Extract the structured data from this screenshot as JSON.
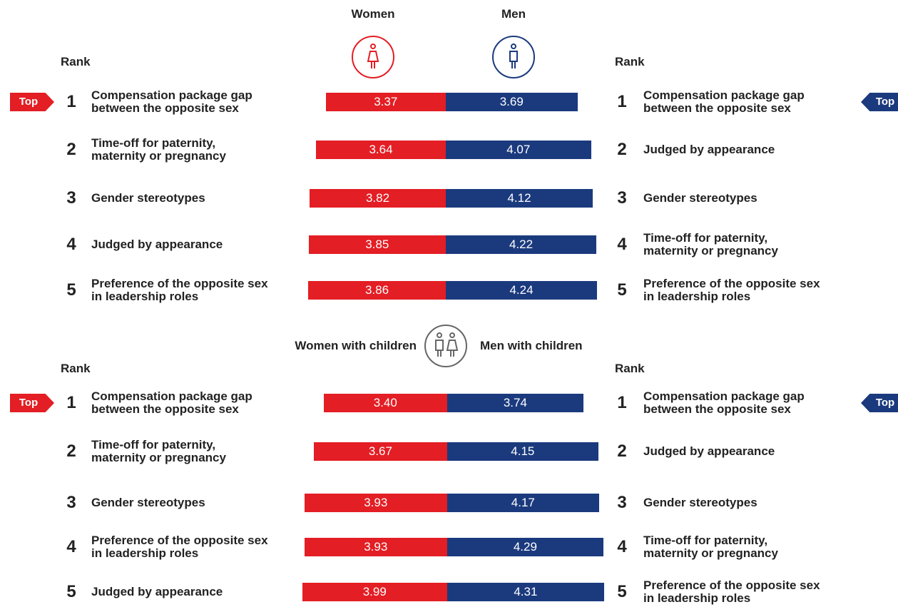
{
  "chart_data": [
    {
      "type": "butterfly",
      "rank_label": "Rank",
      "top_label": "Top",
      "series": [
        {
          "name": "Women",
          "color": "#e31e24",
          "ranks": [
            1,
            2,
            3,
            4,
            5
          ],
          "categories": [
            "Compensation package gap between the opposite sex",
            "Time-off for paternity, maternity or pregnancy",
            "Gender stereotypes",
            "Judged by appearance",
            "Preference of the opposite sex in leadership roles"
          ],
          "values": [
            3.37,
            3.64,
            3.82,
            3.85,
            3.86
          ],
          "value_labels": [
            "3.37",
            "3.64",
            "3.82",
            "3.85",
            "3.86"
          ]
        },
        {
          "name": "Men",
          "color": "#1b3a7e",
          "ranks": [
            1,
            2,
            3,
            4,
            5
          ],
          "categories": [
            "Compensation package gap between the opposite sex",
            "Judged by appearance",
            "Gender stereotypes",
            "Time-off for paternity, maternity or pregnancy",
            "Preference of the opposite sex in leadership roles"
          ],
          "values": [
            3.69,
            4.07,
            4.12,
            4.22,
            4.24
          ],
          "value_labels": [
            "3.69",
            "4.07",
            "4.12",
            "4.22",
            "4.24"
          ]
        }
      ]
    },
    {
      "type": "butterfly",
      "rank_label": "Rank",
      "top_label": "Top",
      "series": [
        {
          "name": "Women with children",
          "color": "#e31e24",
          "ranks": [
            1,
            2,
            3,
            4,
            5
          ],
          "categories": [
            "Compensation package gap between the opposite sex",
            "Time-off for paternity, maternity or pregnancy",
            "Gender stereotypes",
            "Preference of the opposite sex in leadership roles",
            "Judged by appearance"
          ],
          "values": [
            3.4,
            3.67,
            3.93,
            3.93,
            3.99
          ],
          "value_labels": [
            "3.40",
            "3.67",
            "3.93",
            "3.93",
            "3.99"
          ]
        },
        {
          "name": "Men with children",
          "color": "#1b3a7e",
          "ranks": [
            1,
            2,
            3,
            4,
            5
          ],
          "categories": [
            "Compensation package gap between the opposite sex",
            "Judged by appearance",
            "Gender stereotypes",
            "Time-off for paternity, maternity or pregnancy",
            "Preference of the opposite sex in leadership roles"
          ],
          "values": [
            3.74,
            4.15,
            4.17,
            4.29,
            4.31
          ],
          "value_labels": [
            "3.74",
            "4.15",
            "4.17",
            "4.29",
            "4.31"
          ]
        }
      ]
    }
  ]
}
